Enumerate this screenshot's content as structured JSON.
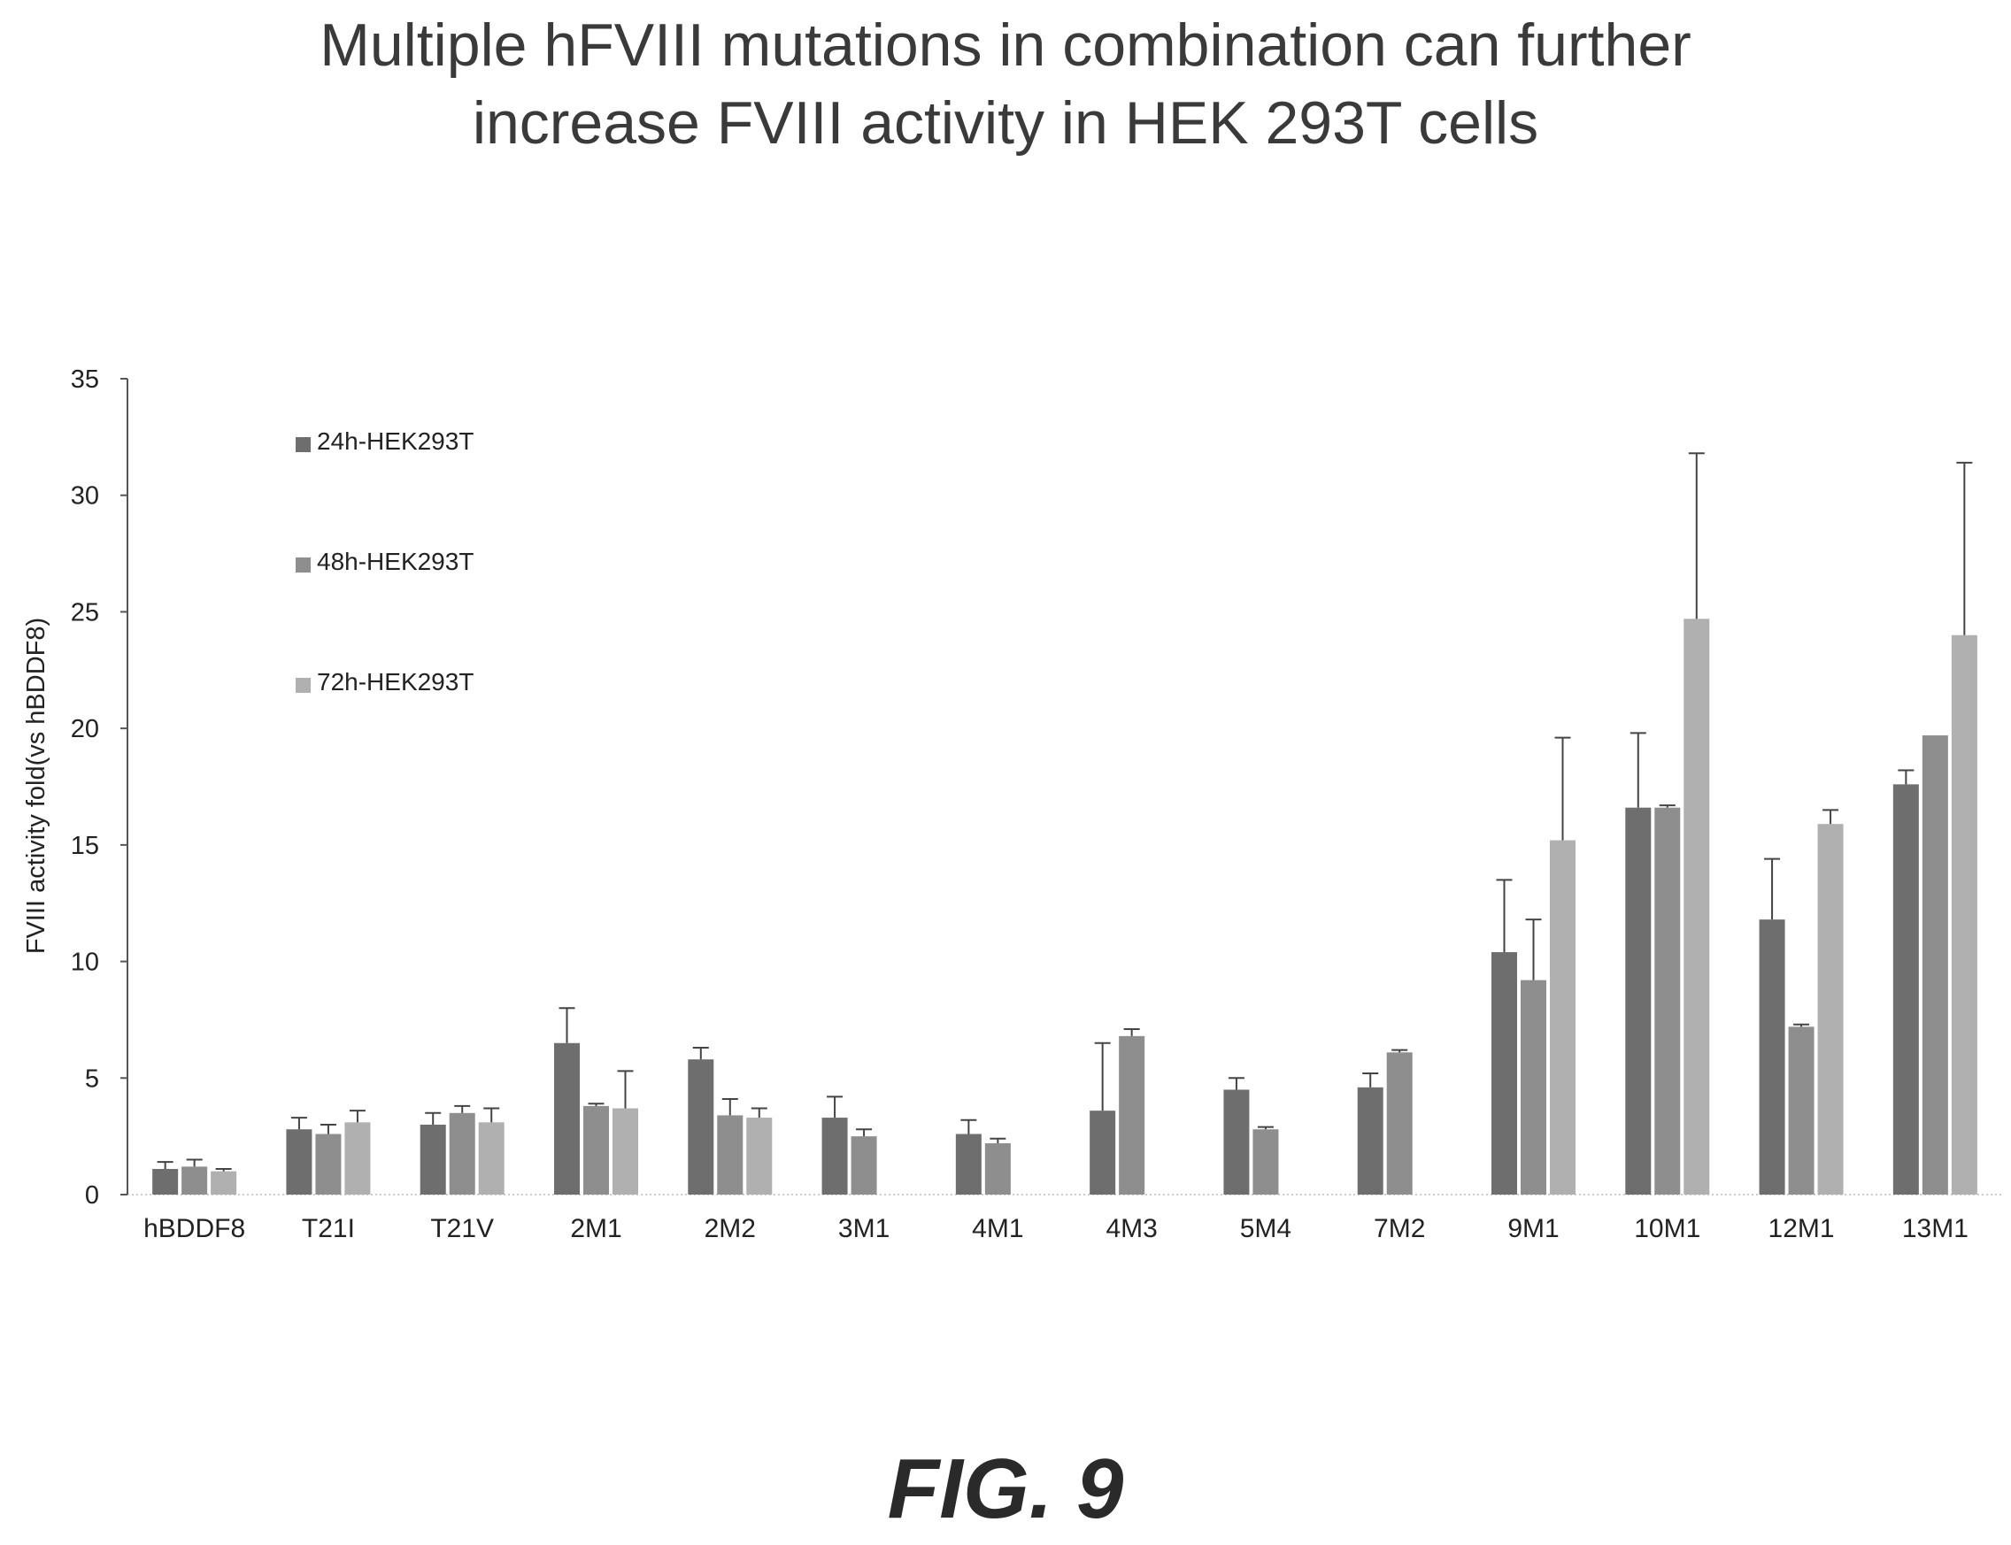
{
  "title_lines": [
    "Multiple hFVIII mutations in combination can further",
    "increase FVIII activity in HEK 293T cells"
  ],
  "figure_label": "FIG. 9",
  "colors": {
    "24h": "#6e6e6e",
    "48h": "#8e8e8e",
    "72h": "#b0b0b0",
    "axis": "#555555"
  },
  "chart_data": {
    "type": "bar",
    "ylabel": "FVIII activity fold(vs hBDDF8)",
    "xlabel": "",
    "ylim": [
      0,
      35
    ],
    "yticks": [
      0,
      5,
      10,
      15,
      20,
      25,
      30,
      35
    ],
    "legend_position": "top-left",
    "categories": [
      "hBDDF8",
      "T21I",
      "T21V",
      "2M1",
      "2M2",
      "3M1",
      "4M1",
      "4M3",
      "5M4",
      "7M2",
      "9M1",
      "10M1",
      "12M1",
      "13M1"
    ],
    "series": [
      {
        "name": "24h-HEK293T",
        "values": [
          1.1,
          2.8,
          3.0,
          6.5,
          5.8,
          3.3,
          2.6,
          3.6,
          4.5,
          4.6,
          10.4,
          16.6,
          11.8,
          17.6
        ],
        "errors": [
          0.3,
          0.5,
          0.5,
          1.5,
          0.5,
          0.9,
          0.6,
          2.9,
          0.5,
          0.6,
          3.1,
          3.2,
          2.6,
          0.6
        ]
      },
      {
        "name": "48h-HEK293T",
        "values": [
          1.2,
          2.6,
          3.5,
          3.8,
          3.4,
          2.5,
          2.2,
          6.8,
          2.8,
          6.1,
          9.2,
          16.6,
          7.2,
          19.7
        ],
        "errors": [
          0.3,
          0.4,
          0.3,
          0.1,
          0.7,
          0.3,
          0.2,
          0.3,
          0.1,
          0.1,
          2.6,
          0.1,
          0.1,
          null
        ]
      },
      {
        "name": "72h-HEK293T",
        "values": [
          1.0,
          3.1,
          3.1,
          3.7,
          3.3,
          null,
          null,
          null,
          null,
          null,
          15.2,
          24.7,
          15.9,
          24.0
        ],
        "errors": [
          0.1,
          0.5,
          0.6,
          1.6,
          0.4,
          null,
          null,
          null,
          null,
          null,
          4.4,
          7.1,
          0.6,
          7.4
        ]
      }
    ]
  }
}
